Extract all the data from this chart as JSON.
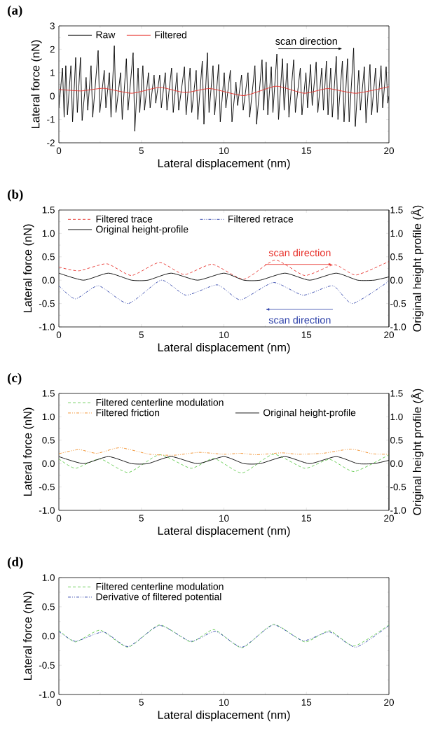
{
  "chart_data": [
    {
      "type": "line",
      "title": "(a)",
      "xlabel": "Lateral displacement (nm)",
      "ylabel": "Lateral force (nN)",
      "xlim": [
        0,
        20
      ],
      "ylim": [
        -2,
        3
      ],
      "xticks": [
        0,
        5,
        10,
        15,
        20
      ],
      "yticks": [
        -2,
        -1,
        0,
        1,
        2,
        3
      ],
      "legend": "top left",
      "annotations": [
        "scan direction"
      ],
      "series": [
        {
          "name": "Raw",
          "color": "#000000",
          "x": [
            0,
            0.22,
            0.32,
            0.42,
            0.52,
            0.73,
            0.83,
            1.02,
            1.12,
            1.31,
            1.41,
            1.65,
            1.75,
            1.95,
            2.05,
            2.38,
            2.48,
            2.75,
            2.85,
            3.06,
            3.16,
            3.36,
            3.46,
            3.74,
            3.84,
            4.09,
            4.19,
            4.5,
            4.6,
            4.8,
            4.9,
            5.09,
            5.19,
            5.43,
            5.53,
            5.77,
            5.87,
            6.11,
            6.21,
            6.45,
            6.55,
            6.83,
            6.93,
            7.16,
            7.26,
            7.61,
            7.71,
            7.95,
            8.05,
            8.32,
            8.42,
            8.69,
            8.79,
            9.0,
            9.1,
            9.34,
            9.44,
            9.68,
            9.78,
            10.02,
            10.12,
            10.39,
            10.49,
            10.73,
            10.83,
            11.07,
            11.17,
            11.46,
            11.56,
            11.88,
            11.98,
            12.31,
            12.41,
            12.56,
            12.66,
            12.87,
            12.97,
            13.21,
            13.31,
            13.55,
            13.65,
            13.84,
            13.94,
            14.23,
            14.33,
            14.63,
            14.73,
            14.97,
            15.07,
            15.25,
            15.35,
            15.59,
            15.69,
            15.93,
            16.03,
            16.21,
            16.31,
            16.47,
            16.57,
            16.81,
            16.91,
            17.18,
            17.28,
            17.49,
            17.59,
            17.86,
            17.96,
            18.17,
            18.27,
            18.51,
            18.61,
            18.85,
            18.95,
            19.19,
            19.29,
            19.52,
            19.62,
            19.83,
            19.93,
            20
          ],
          "values": [
            -0.5,
            1.2,
            -0.9,
            1.3,
            -0.8,
            1.3,
            -1.1,
            1.65,
            -0.7,
            1.65,
            -1.05,
            0.8,
            -0.6,
            1.3,
            -0.9,
            1.95,
            -0.7,
            1.1,
            -0.5,
            1.0,
            -0.9,
            2.15,
            -0.7,
            1.0,
            -1.0,
            1.6,
            -0.6,
            1.85,
            -1.5,
            1.2,
            -0.7,
            1.3,
            -0.6,
            1.0,
            -0.5,
            0.9,
            -0.3,
            0.9,
            -0.5,
            1.0,
            -0.6,
            1.2,
            -0.7,
            1.0,
            -0.6,
            1.25,
            -0.8,
            1.2,
            -0.7,
            1.1,
            -1.0,
            1.5,
            -1.2,
            1.85,
            -0.7,
            1.3,
            -0.8,
            1.35,
            -1.1,
            1.0,
            -0.5,
            1.1,
            -1.1,
            0.6,
            -0.4,
            0.9,
            -0.6,
            1.0,
            -0.9,
            1.3,
            -1.2,
            1.55,
            -0.6,
            1.45,
            -0.8,
            1.25,
            -0.7,
            1.8,
            -1.0,
            1.6,
            -0.6,
            1.4,
            -0.9,
            1.55,
            -0.7,
            1.2,
            -0.8,
            1.0,
            -0.5,
            1.35,
            -0.4,
            1.45,
            -0.7,
            1.2,
            -0.6,
            1.5,
            -0.8,
            1.2,
            -0.9,
            1.7,
            -1.0,
            1.5,
            -1.1,
            1.6,
            -1.1,
            2.05,
            -1.3,
            1.1,
            -0.6,
            1.25,
            -1.15,
            1.35,
            -0.8,
            1.2,
            -0.7,
            1.3,
            -0.5,
            1.25,
            -0.3,
            0.0
          ]
        },
        {
          "name": "Filtered",
          "color": "#e8302a",
          "x": [
            0,
            1.36,
            2.72,
            4.42,
            6.11,
            7.64,
            9.17,
            11.21,
            13.16,
            14.86,
            16.3,
            18.0,
            20
          ],
          "values": [
            0.28,
            0.22,
            0.33,
            0.12,
            0.37,
            0.15,
            0.32,
            0.02,
            0.42,
            0.12,
            0.32,
            0.12,
            0.4
          ]
        }
      ]
    },
    {
      "type": "line",
      "title": "(b)",
      "xlabel": "Lateral displacement (nm)",
      "ylabel": "Lateral force (nN)",
      "y2label": "Original height profile (Å)",
      "xlim": [
        0,
        20
      ],
      "ylim": [
        -1,
        1.5
      ],
      "y2lim": [
        -1,
        1.5
      ],
      "xticks": [
        0,
        5,
        10,
        15,
        20
      ],
      "yticks": [
        {
          "value": -1,
          "label": "-1.0"
        },
        -0.5,
        {
          "value": 0,
          "label": "0.0"
        },
        0.5,
        {
          "value": 1,
          "label": "1.0"
        },
        1.5
      ],
      "y2ticks": [
        {
          "value": -1,
          "label": "-1.0"
        },
        -0.5,
        {
          "value": 0,
          "label": "0.0"
        },
        0.5,
        {
          "value": 1,
          "label": "1.0"
        },
        1.5
      ],
      "legend": "top left",
      "annotations": [
        "scan direction",
        "scan direction"
      ],
      "series": [
        {
          "name": "Filtered trace",
          "color": "#e8302a",
          "line_style": "dashed",
          "x": [
            0,
            1.2,
            2.9,
            4.4,
            6.1,
            7.6,
            9.3,
            11.2,
            13.1,
            14.9,
            16.7,
            18.0,
            20
          ],
          "values": [
            0.28,
            0.2,
            0.35,
            0.1,
            0.38,
            0.12,
            0.34,
            0.02,
            0.43,
            0.1,
            0.33,
            0.11,
            0.4
          ]
        },
        {
          "name": "Filtered retrace",
          "color": "#2b3fa8",
          "line_style": "dashdot",
          "x": [
            0,
            1.0,
            2.4,
            4.2,
            6.2,
            7.7,
            9.6,
            11.0,
            13.0,
            14.8,
            16.6,
            17.8,
            20
          ],
          "values": [
            -0.12,
            -0.4,
            -0.12,
            -0.5,
            0.0,
            -0.32,
            -0.1,
            -0.42,
            -0.05,
            -0.32,
            -0.12,
            -0.5,
            -0.02
          ]
        },
        {
          "name": "Original height-profile",
          "color": "#000000",
          "axis": "y2",
          "x": [
            0,
            1.5,
            3.0,
            4.4,
            5.4,
            6.8,
            8.4,
            10.0,
            11.2,
            12.2,
            13.7,
            15.2,
            16.8,
            18.1,
            19.1,
            20
          ],
          "values": [
            0.15,
            0.0,
            0.15,
            0.0,
            0.0,
            0.15,
            0.0,
            0.15,
            0.0,
            0.0,
            0.15,
            0.0,
            0.15,
            0.0,
            0.0,
            0.07
          ]
        }
      ]
    },
    {
      "type": "line",
      "title": "(c)",
      "xlabel": "Lateral displacement (nm)",
      "ylabel": "Lateral force (nN)",
      "y2label": "Original height profile (Å)",
      "xlim": [
        0,
        20
      ],
      "ylim": [
        -1,
        1.5
      ],
      "y2lim": [
        -1,
        1.5
      ],
      "xticks": [
        0,
        5,
        10,
        15,
        20
      ],
      "yticks": [
        {
          "value": -1,
          "label": "-1.0"
        },
        -0.5,
        {
          "value": 0,
          "label": "0.0"
        },
        0.5,
        {
          "value": 1,
          "label": "1.0"
        },
        1.5
      ],
      "y2ticks": [
        {
          "value": -1,
          "label": "-1.0"
        },
        -0.5,
        {
          "value": 0,
          "label": "0.0"
        },
        0.5,
        {
          "value": 1,
          "label": "1.0"
        },
        1.5
      ],
      "legend": "top left",
      "series": [
        {
          "name": "Filtered centerline modulation",
          "color": "#5ec94a",
          "line_style": "dashed",
          "x": [
            0,
            1.0,
            2.5,
            4.2,
            6.1,
            8.0,
            9.4,
            11.1,
            13.0,
            14.9,
            16.4,
            17.9,
            20
          ],
          "values": [
            0.1,
            -0.1,
            0.1,
            -0.19,
            0.19,
            -0.1,
            0.11,
            -0.2,
            0.2,
            -0.1,
            0.09,
            -0.17,
            0.19
          ]
        },
        {
          "name": "Filtered friction",
          "color": "#f08a1f",
          "line_style": "dashdot",
          "x": [
            0,
            1.2,
            2.3,
            3.7,
            5.5,
            7.0,
            8.5,
            10.0,
            11.0,
            12.0,
            13.5,
            14.5,
            16.0,
            17.7,
            19.0,
            20
          ],
          "values": [
            0.21,
            0.3,
            0.22,
            0.34,
            0.2,
            0.18,
            0.24,
            0.2,
            0.22,
            0.19,
            0.23,
            0.2,
            0.22,
            0.31,
            0.21,
            0.2
          ]
        },
        {
          "name": "Original height-profile",
          "color": "#000000",
          "axis": "y2",
          "x": [
            0,
            1.5,
            3.0,
            4.4,
            5.4,
            6.8,
            8.4,
            10.0,
            11.2,
            12.2,
            13.7,
            15.2,
            16.8,
            18.1,
            19.1,
            20
          ],
          "values": [
            0.15,
            0.0,
            0.15,
            0.0,
            0.0,
            0.15,
            0.0,
            0.15,
            0.0,
            0.0,
            0.15,
            0.0,
            0.15,
            0.0,
            0.0,
            0.07
          ]
        }
      ]
    },
    {
      "type": "line",
      "title": "(d)",
      "xlabel": "Lateral displacement (nm)",
      "ylabel": "Lateral force (nN)",
      "xlim": [
        0,
        20
      ],
      "ylim": [
        -1,
        1
      ],
      "xticks": [
        0,
        5,
        10,
        15,
        20
      ],
      "yticks": [
        {
          "value": -1,
          "label": "-1.0"
        },
        -0.5,
        {
          "value": 0,
          "label": "0.0"
        },
        0.5,
        {
          "value": 1,
          "label": "1.0"
        }
      ],
      "legend": "top left",
      "series": [
        {
          "name": "Filtered centerline modulation",
          "color": "#5ec94a",
          "line_style": "dashed",
          "x": [
            0,
            1.0,
            2.5,
            4.2,
            6.1,
            8.0,
            9.4,
            11.1,
            13.0,
            14.9,
            16.4,
            17.9,
            20
          ],
          "values": [
            0.1,
            -0.1,
            0.1,
            -0.19,
            0.19,
            -0.1,
            0.11,
            -0.2,
            0.2,
            -0.1,
            0.09,
            -0.17,
            0.19
          ]
        },
        {
          "name": "Derivative of filtered potential",
          "color": "#2b3fa8",
          "line_style": "dashdot",
          "x": [
            0,
            1.0,
            2.7,
            4.2,
            6.1,
            8.0,
            9.5,
            11.1,
            13.0,
            14.8,
            16.4,
            18.0,
            20
          ],
          "values": [
            0.08,
            -0.09,
            0.07,
            -0.18,
            0.18,
            -0.09,
            0.08,
            -0.19,
            0.19,
            -0.08,
            0.07,
            -0.19,
            0.18
          ]
        }
      ]
    }
  ]
}
